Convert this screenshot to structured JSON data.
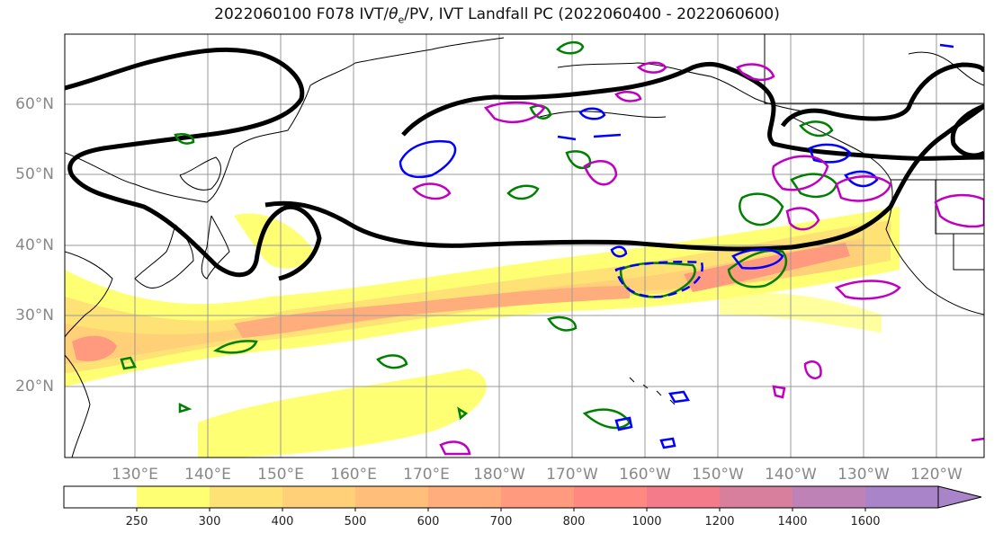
{
  "title_parts": {
    "prefix": "2022060100 F078 IVT/",
    "theta": "θ",
    "theta_sub": "e",
    "suffix": "/PV, IVT Landfall PC (2022060400 - 2022060600)"
  },
  "lat_labels": [
    "60°N",
    "50°N",
    "40°N",
    "30°N",
    "20°N"
  ],
  "lon_labels": [
    "130°E",
    "140°E",
    "150°E",
    "160°E",
    "170°E",
    "180°W",
    "170°W",
    "160°W",
    "150°W",
    "140°W",
    "130°W",
    "120°W"
  ],
  "colorbar": {
    "ticks": [
      "250",
      "300",
      "400",
      "500",
      "600",
      "700",
      "800",
      "1000",
      "1200",
      "1400",
      "1600"
    ],
    "colors": [
      "#ffffff",
      "#ffff73",
      "#ffe275",
      "#ffd078",
      "#ffbf7a",
      "#ffad7d",
      "#ff9a7f",
      "#ff8880",
      "#f47c8a",
      "#d87f9e",
      "#bf82b6",
      "#a984c8"
    ]
  },
  "colors": {
    "ivt_contour_black": "#000000",
    "theta_e_green": "#008000",
    "pv_blue": "#0000ff",
    "pc_magenta": "#c000c0",
    "coast": "#000000",
    "grid": "#999999"
  }
}
